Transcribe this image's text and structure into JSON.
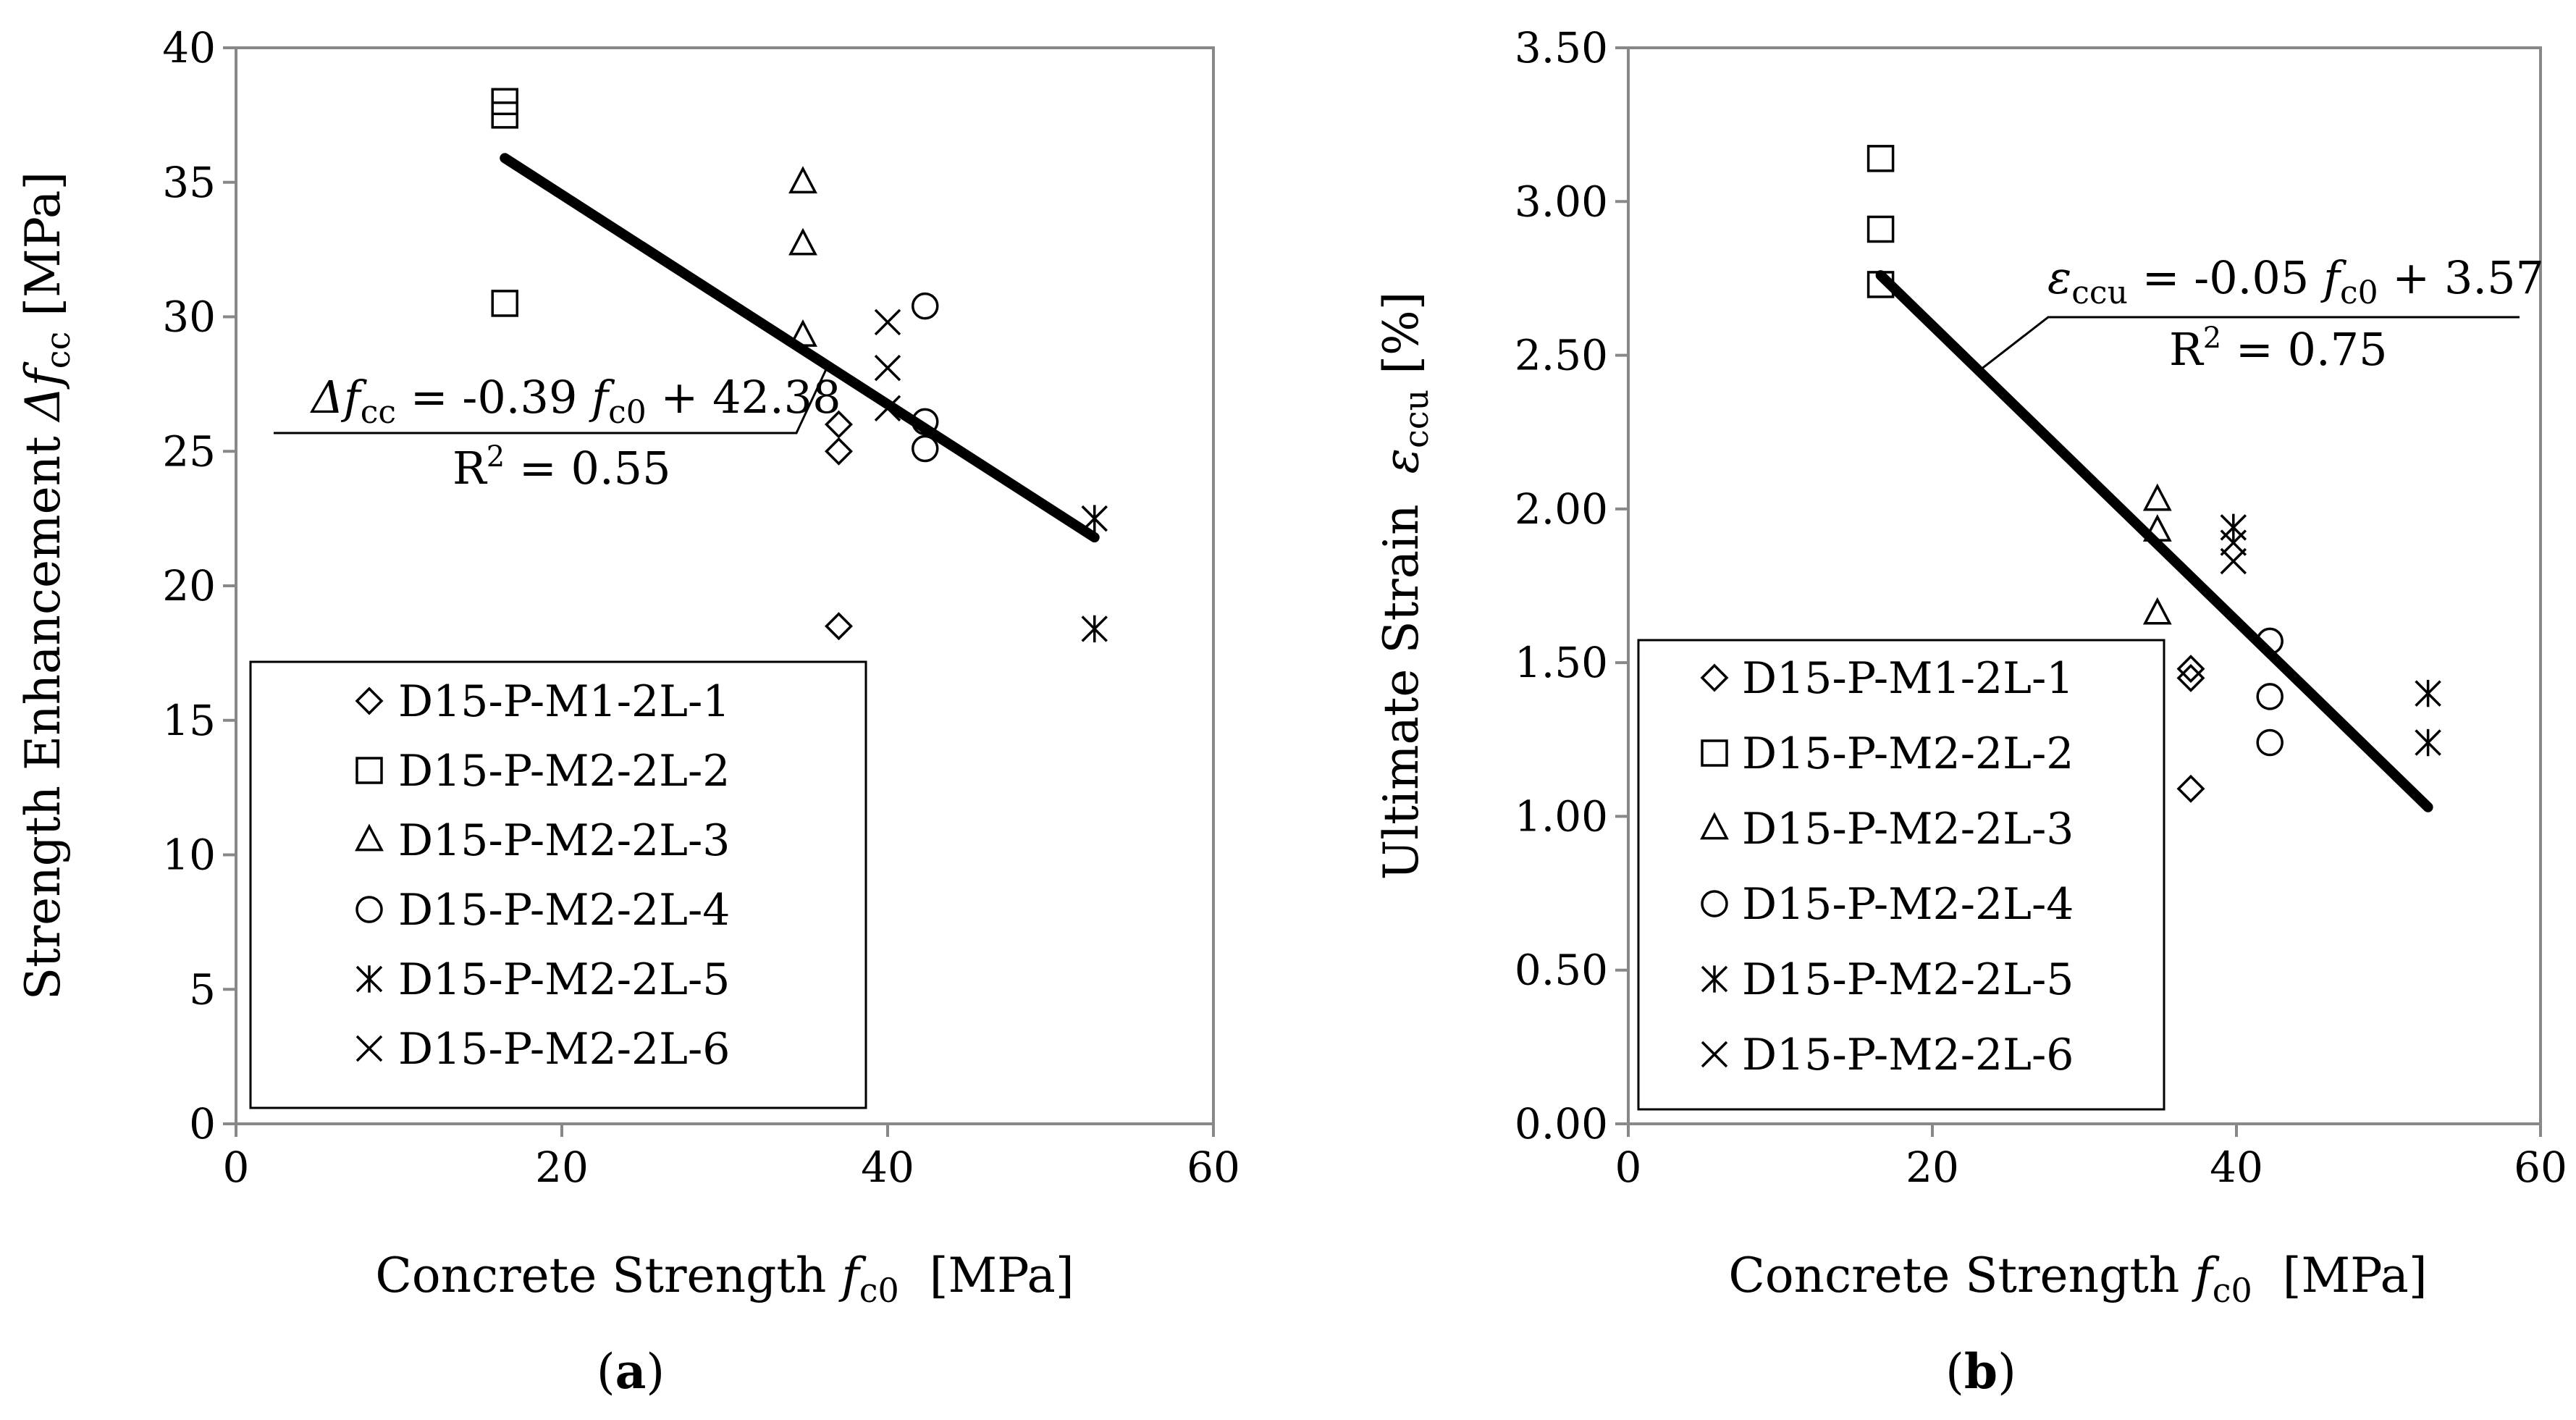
{
  "chart_data": [
    {
      "type": "scatter",
      "panel": "a",
      "caption": {
        "open": "(",
        "letter": "a",
        "close": ")"
      },
      "xlabel": {
        "main": "Concrete Strength ",
        "var": "f",
        "sub": "c0",
        "unit": "  [MPa]"
      },
      "ylabel": {
        "main": "Strength Enhancement ",
        "var": "Δf",
        "sub": "cc",
        "unit": " [MPa]"
      },
      "xlim": [
        0,
        60
      ],
      "ylim": [
        0,
        40
      ],
      "xticks": [
        0,
        20,
        40,
        60
      ],
      "xtick_labels": [
        "0",
        "20",
        "40",
        "60"
      ],
      "yticks": [
        0,
        5,
        10,
        15,
        20,
        25,
        30,
        35,
        40
      ],
      "ytick_labels": [
        "0",
        "5",
        "10",
        "15",
        "20",
        "25",
        "30",
        "35",
        "40"
      ],
      "series": [
        {
          "name": "D15-P-M1-2L-1",
          "marker": "diamond",
          "x": [
            37.0,
            37.0,
            37.0
          ],
          "y": [
            26.0,
            25.0,
            18.5
          ]
        },
        {
          "name": "D15-P-M2-2L-2",
          "marker": "square",
          "x": [
            16.5,
            16.5,
            16.5
          ],
          "y": [
            38.0,
            37.5,
            30.5
          ]
        },
        {
          "name": "D15-P-M2-2L-3",
          "marker": "triangle",
          "x": [
            34.8,
            34.8,
            34.8
          ],
          "y": [
            35.0,
            32.7,
            29.3
          ]
        },
        {
          "name": "D15-P-M2-2L-4",
          "marker": "circle",
          "x": [
            42.3,
            42.3,
            42.3
          ],
          "y": [
            30.4,
            26.1,
            25.1
          ]
        },
        {
          "name": "D15-P-M2-2L-5",
          "marker": "asterisk",
          "x": [
            52.7,
            52.7
          ],
          "y": [
            22.5,
            18.4
          ]
        },
        {
          "name": "D15-P-M2-2L-6",
          "marker": "x",
          "x": [
            40.0,
            40.0,
            40.0
          ],
          "y": [
            29.8,
            28.1,
            26.6
          ]
        }
      ],
      "trendline": {
        "x": [
          16.5,
          52.7
        ],
        "y": [
          35.9,
          21.8
        ]
      },
      "equation": {
        "var": "Δf",
        "var_sub": "cc",
        "mid": " = -0.39 ",
        "x_var": "f",
        "x_sub": "c0",
        "tail": " + 42.38"
      },
      "r2": {
        "base": "R",
        "exp": "2",
        "value": " = 0.55"
      }
    },
    {
      "type": "scatter",
      "panel": "b",
      "caption": {
        "open": "(",
        "letter": "b",
        "close": ")"
      },
      "xlabel": {
        "main": "Concrete Strength ",
        "var": "f",
        "sub": "c0",
        "unit": "  [MPa]"
      },
      "ylabel": {
        "main": "Ultimate Strain  ",
        "var": "ε",
        "sub": "ccu",
        "unit": " [%]"
      },
      "xlim": [
        0,
        60
      ],
      "ylim": [
        0,
        3.5
      ],
      "xticks": [
        0,
        20,
        40,
        60
      ],
      "xtick_labels": [
        "0",
        "20",
        "40",
        "60"
      ],
      "yticks": [
        0,
        0.5,
        1.0,
        1.5,
        2.0,
        2.5,
        3.0,
        3.5
      ],
      "ytick_labels": [
        "0.00",
        "0.50",
        "1.00",
        "1.50",
        "2.00",
        "2.50",
        "3.00",
        "3.50"
      ],
      "series": [
        {
          "name": "D15-P-M1-2L-1",
          "marker": "diamond",
          "x": [
            37.0,
            37.0,
            37.0
          ],
          "y": [
            1.48,
            1.45,
            1.09
          ]
        },
        {
          "name": "D15-P-M2-2L-2",
          "marker": "square",
          "x": [
            16.6,
            16.6,
            16.6
          ],
          "y": [
            3.14,
            2.91,
            2.73
          ]
        },
        {
          "name": "D15-P-M2-2L-3",
          "marker": "triangle",
          "x": [
            34.8,
            34.8,
            34.8
          ],
          "y": [
            2.03,
            1.93,
            1.66
          ]
        },
        {
          "name": "D15-P-M2-2L-4",
          "marker": "circle",
          "x": [
            42.2,
            42.2,
            42.2
          ],
          "y": [
            1.57,
            1.39,
            1.24
          ]
        },
        {
          "name": "D15-P-M2-2L-5",
          "marker": "asterisk",
          "x": [
            52.6,
            52.6,
            39.8
          ],
          "y": [
            1.4,
            1.24,
            1.94
          ]
        },
        {
          "name": "D15-P-M2-2L-6",
          "marker": "x",
          "x": [
            39.8,
            39.8
          ],
          "y": [
            1.89,
            1.83
          ]
        }
      ],
      "trendline": {
        "x": [
          16.6,
          52.6
        ],
        "y": [
          2.76,
          1.03
        ]
      },
      "equation": {
        "var": "ε",
        "var_sub": "ccu",
        "mid": " = -0.05 ",
        "x_var": "f",
        "x_sub": "c0",
        "tail": " + 3.57"
      },
      "r2": {
        "base": "R",
        "exp": "2",
        "value": " = 0.75"
      }
    }
  ]
}
